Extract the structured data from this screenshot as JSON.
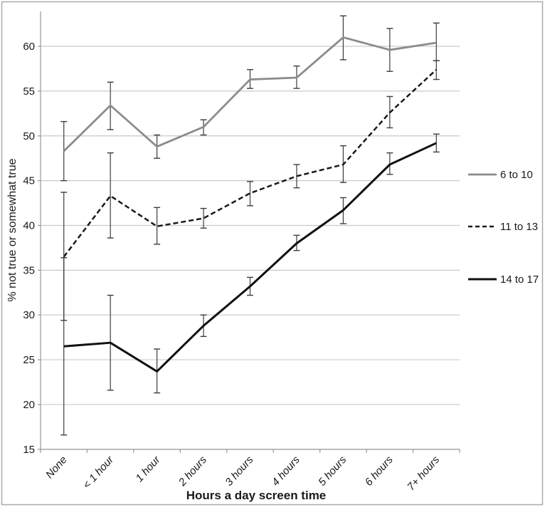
{
  "chart_data": {
    "type": "line",
    "title": "",
    "xlabel": "Hours a day screen time",
    "ylabel": "% not true or somewhat true",
    "categories": [
      "None",
      "< 1 hour",
      "1 hour",
      "2 hours",
      "3 hours",
      "4 hours",
      "5 hours",
      "6 hours",
      "7+ hours"
    ],
    "yticks": [
      15,
      20,
      25,
      30,
      35,
      40,
      45,
      50,
      55,
      60
    ],
    "ylim": [
      15,
      63.9
    ],
    "grid": true,
    "legend_position": "right",
    "error_bars": true,
    "series": [
      {
        "name": "6 to 10",
        "color": "#8c8c8c",
        "style": "solid",
        "stroke_width": 2.8,
        "values": [
          48.3,
          53.4,
          48.8,
          51.0,
          56.3,
          56.5,
          61.0,
          59.6,
          60.4
        ],
        "err_low": [
          45.0,
          50.7,
          47.5,
          50.1,
          55.3,
          55.3,
          58.5,
          57.2,
          58.4
        ],
        "err_high": [
          51.6,
          56.0,
          50.1,
          51.8,
          57.4,
          57.8,
          63.4,
          62.0,
          62.6
        ]
      },
      {
        "name": "11 to 13",
        "color": "#1a1a1a",
        "style": "dashed",
        "stroke_width": 2.5,
        "values": [
          36.5,
          43.3,
          39.9,
          40.8,
          43.6,
          45.5,
          46.8,
          52.6,
          57.4
        ],
        "err_low": [
          29.4,
          38.6,
          37.9,
          39.7,
          42.2,
          44.2,
          44.8,
          50.9,
          56.3
        ],
        "err_high": [
          43.7,
          48.1,
          42.0,
          41.9,
          44.9,
          46.8,
          48.9,
          54.4,
          58.4
        ]
      },
      {
        "name": "14 to 17",
        "color": "#111111",
        "style": "solid",
        "stroke_width": 3,
        "values": [
          26.5,
          26.9,
          23.7,
          28.8,
          33.2,
          38.0,
          41.7,
          46.8,
          49.2
        ],
        "err_low": [
          16.6,
          21.6,
          21.3,
          27.6,
          32.2,
          37.2,
          40.2,
          45.7,
          48.2
        ],
        "err_high": [
          36.4,
          32.2,
          26.2,
          30.0,
          34.2,
          38.9,
          43.1,
          48.1,
          50.2
        ]
      }
    ],
    "colors": {
      "error_bar": "#3d3d3d",
      "axis_line": "#9e9e9e",
      "gridline": "#c9c9c9",
      "border": "#ababab"
    }
  }
}
